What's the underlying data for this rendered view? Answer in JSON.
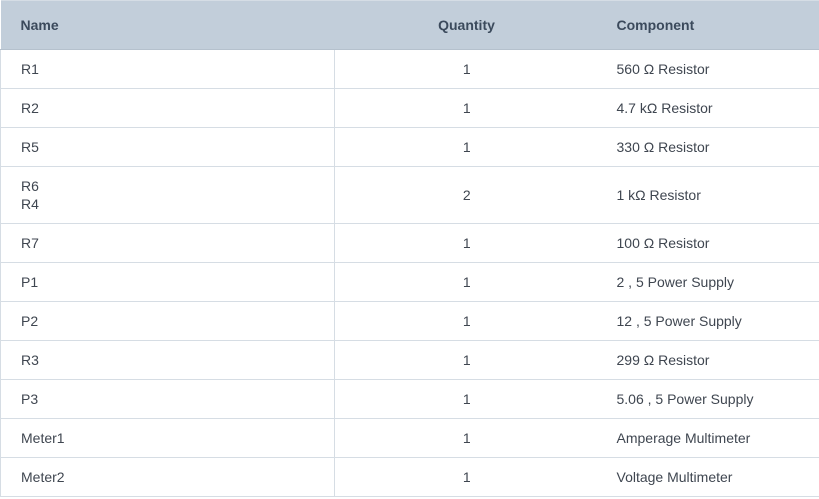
{
  "header": {
    "name": "Name",
    "quantity": "Quantity",
    "component": "Component"
  },
  "rows": [
    {
      "names": [
        "R1"
      ],
      "quantity": "1",
      "component": "560 Ω Resistor"
    },
    {
      "names": [
        "R2"
      ],
      "quantity": "1",
      "component": "4.7 kΩ Resistor"
    },
    {
      "names": [
        "R5"
      ],
      "quantity": "1",
      "component": "330 Ω Resistor"
    },
    {
      "names": [
        "R6",
        "R4"
      ],
      "quantity": "2",
      "component": "1 kΩ Resistor"
    },
    {
      "names": [
        "R7"
      ],
      "quantity": "1",
      "component": "100 Ω Resistor"
    },
    {
      "names": [
        "P1"
      ],
      "quantity": "1",
      "component": "2 , 5 Power Supply"
    },
    {
      "names": [
        "P2"
      ],
      "quantity": "1",
      "component": "12 , 5 Power Supply"
    },
    {
      "names": [
        "R3"
      ],
      "quantity": "1",
      "component": "299 Ω Resistor"
    },
    {
      "names": [
        "P3"
      ],
      "quantity": "1",
      "component": "5.06 , 5 Power Supply"
    },
    {
      "names": [
        "Meter1"
      ],
      "quantity": "1",
      "component": "Amperage Multimeter"
    },
    {
      "names": [
        "Meter2"
      ],
      "quantity": "1",
      "component": "Voltage Multimeter"
    }
  ],
  "colors": {
    "header_bg": "#c2ceda",
    "header_text": "#3b4a5c",
    "border": "#d6dde4",
    "text": "#3f4650"
  }
}
